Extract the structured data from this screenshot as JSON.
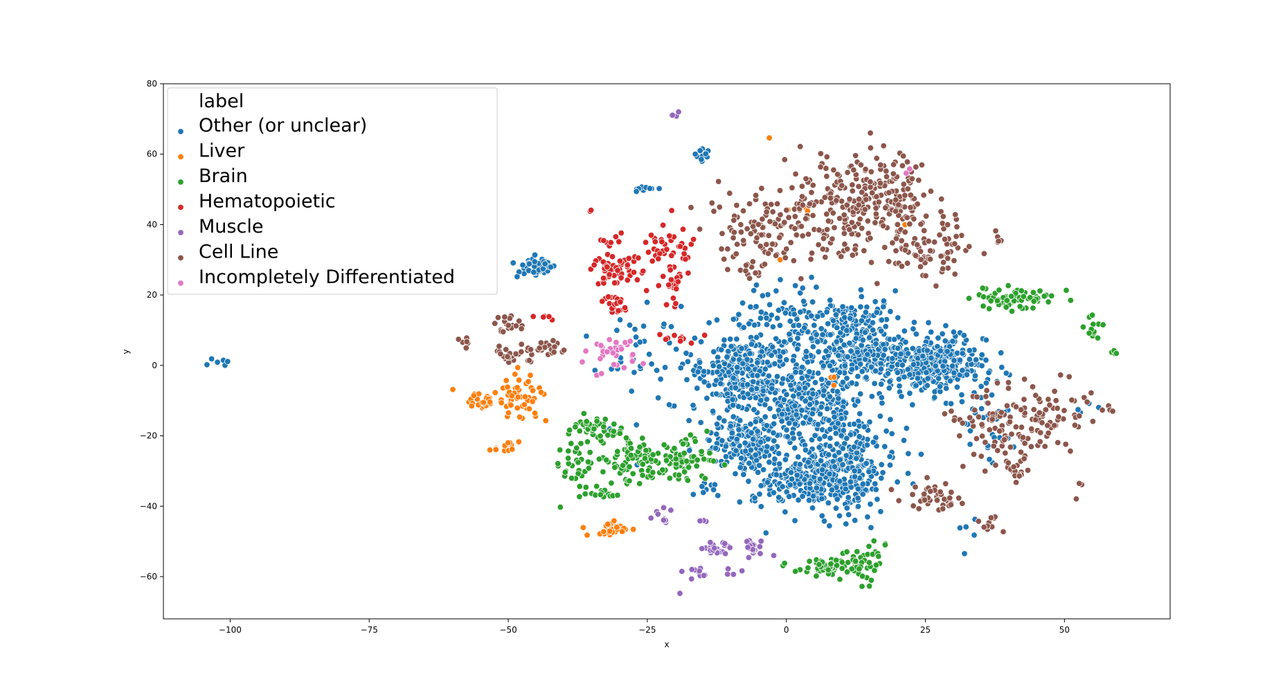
{
  "chart_data": {
    "type": "scatter",
    "title": "",
    "xlabel": "x",
    "ylabel": "y",
    "xlim": [
      -112,
      69
    ],
    "ylim": [
      -72,
      80
    ],
    "xticks": [
      -100,
      -75,
      -50,
      -25,
      0,
      25,
      50
    ],
    "yticks": [
      -60,
      -40,
      -20,
      0,
      20,
      40,
      60,
      80
    ],
    "xtick_labels": [
      "−100",
      "−75",
      "−50",
      "−25",
      "0",
      "25",
      "50"
    ],
    "ytick_labels": [
      "−60",
      "−40",
      "−20",
      "0",
      "20",
      "40",
      "60",
      "80"
    ],
    "grid": false,
    "legend": {
      "title": "label",
      "placement": "top-left"
    },
    "series": [
      {
        "name": "Other (or unclear)",
        "color": "#1f77b4",
        "clusters": [
          {
            "cx": -8,
            "cy": -2,
            "sx": 3.5,
            "sy": 5,
            "n": 260
          },
          {
            "cx": 4,
            "cy": -10,
            "sx": 5,
            "sy": 6,
            "n": 300
          },
          {
            "cx": 14,
            "cy": 6,
            "sx": 4,
            "sy": 6,
            "n": 260
          },
          {
            "cx": 27,
            "cy": 0,
            "sx": 4.5,
            "sy": 4,
            "n": 320
          },
          {
            "cx": 4,
            "cy": -32,
            "sx": 5,
            "sy": 4,
            "n": 260
          },
          {
            "cx": 12,
            "cy": -28,
            "sx": 4,
            "sy": 7,
            "n": 200
          },
          {
            "cx": -8,
            "cy": -22,
            "sx": 3.5,
            "sy": 4,
            "n": 150
          },
          {
            "cx": 2,
            "cy": 10,
            "sx": 6,
            "sy": 7,
            "n": 140
          },
          {
            "cx": -45,
            "cy": 28,
            "sx": 1.8,
            "sy": 1.6,
            "n": 45
          },
          {
            "cx": -15,
            "cy": 60,
            "sx": 1,
            "sy": 1,
            "n": 12
          },
          {
            "cx": -26,
            "cy": 50,
            "sx": 1.2,
            "sy": 0.5,
            "n": 9
          },
          {
            "cx": -102,
            "cy": 1,
            "sx": 1.3,
            "sy": 0.7,
            "n": 6
          },
          {
            "cx": -17,
            "cy": -5,
            "sx": 7,
            "sy": 10,
            "n": 60
          },
          {
            "cx": -28,
            "cy": 5,
            "sx": 3,
            "sy": 5,
            "n": 18
          },
          {
            "cx": 36,
            "cy": -15,
            "sx": 3,
            "sy": 8,
            "n": 30
          },
          {
            "cx": 55,
            "cy": -12,
            "sx": 1.5,
            "sy": 1,
            "n": 4
          },
          {
            "cx": -14,
            "cy": -35,
            "sx": 1.2,
            "sy": 1,
            "n": 10
          },
          {
            "cx": 33,
            "cy": -47,
            "sx": 2,
            "sy": 2,
            "n": 5
          }
        ]
      },
      {
        "name": "Liver",
        "color": "#ff7f0e",
        "clusters": [
          {
            "cx": -48,
            "cy": -9,
            "sx": 2.2,
            "sy": 3,
            "n": 55
          },
          {
            "cx": -55,
            "cy": -10,
            "sx": 1.6,
            "sy": 1,
            "n": 25
          },
          {
            "cx": -32,
            "cy": -47,
            "sx": 2,
            "sy": 1,
            "n": 35
          },
          {
            "cx": -50,
            "cy": -23,
            "sx": 1.3,
            "sy": 0.8,
            "n": 12
          },
          {
            "cx": -60,
            "cy": -7,
            "sx": 0.3,
            "sy": 0.3,
            "n": 1
          },
          {
            "cx": -3,
            "cy": 65,
            "sx": 0.3,
            "sy": 0.3,
            "n": 1
          },
          {
            "cx": 4,
            "cy": 44,
            "sx": 1.5,
            "sy": 1.5,
            "n": 4
          },
          {
            "cx": 9,
            "cy": -5,
            "sx": 2,
            "sy": 2,
            "n": 3
          },
          {
            "cx": 22,
            "cy": 40,
            "sx": 0.3,
            "sy": 0.3,
            "n": 1
          },
          {
            "cx": -1,
            "cy": 30,
            "sx": 0.3,
            "sy": 0.3,
            "n": 1
          }
        ]
      },
      {
        "name": "Brain",
        "color": "#2ca02c",
        "clusters": [
          {
            "cx": -34,
            "cy": -18,
            "sx": 2.5,
            "sy": 2,
            "n": 40
          },
          {
            "cx": -26,
            "cy": -27,
            "sx": 3,
            "sy": 3,
            "n": 90
          },
          {
            "cx": -19,
            "cy": -27,
            "sx": 2.5,
            "sy": 3,
            "n": 60
          },
          {
            "cx": -38,
            "cy": -28,
            "sx": 2,
            "sy": 5,
            "n": 40
          },
          {
            "cx": -33,
            "cy": -36,
            "sx": 1.5,
            "sy": 1,
            "n": 12
          },
          {
            "cx": 42,
            "cy": 19,
            "sx": 3.5,
            "sy": 1.5,
            "n": 70
          },
          {
            "cx": 7,
            "cy": -57,
            "sx": 2.3,
            "sy": 1.3,
            "n": 50
          },
          {
            "cx": 14,
            "cy": -56,
            "sx": 2,
            "sy": 3,
            "n": 45
          },
          {
            "cx": 55,
            "cy": 10,
            "sx": 0.8,
            "sy": 2,
            "n": 12
          },
          {
            "cx": 59,
            "cy": 4,
            "sx": 0.5,
            "sy": 0.8,
            "n": 4
          }
        ]
      },
      {
        "name": "Hematopoietic",
        "color": "#d62728",
        "clusters": [
          {
            "cx": -31,
            "cy": 28,
            "sx": 2,
            "sy": 2.5,
            "n": 60
          },
          {
            "cx": -31,
            "cy": 17,
            "sx": 1,
            "sy": 2,
            "n": 20
          },
          {
            "cx": -21,
            "cy": 33,
            "sx": 2.5,
            "sy": 4,
            "n": 40
          },
          {
            "cx": -21,
            "cy": 22,
            "sx": 1.5,
            "sy": 3,
            "n": 20
          },
          {
            "cx": -32,
            "cy": 36,
            "sx": 1,
            "sy": 0.8,
            "n": 8
          },
          {
            "cx": -35,
            "cy": 44,
            "sx": 0.3,
            "sy": 0.3,
            "n": 2
          },
          {
            "cx": -19,
            "cy": 8,
            "sx": 2,
            "sy": 1,
            "n": 10
          },
          {
            "cx": -44,
            "cy": 14,
            "sx": 1.5,
            "sy": 0.5,
            "n": 5
          }
        ]
      },
      {
        "name": "Muscle",
        "color": "#9467bd",
        "clusters": [
          {
            "cx": -20,
            "cy": 72,
            "sx": 0.4,
            "sy": 1.5,
            "n": 4
          },
          {
            "cx": -22,
            "cy": -43,
            "sx": 1,
            "sy": 1,
            "n": 10
          },
          {
            "cx": -12,
            "cy": -52,
            "sx": 1.5,
            "sy": 1,
            "n": 22
          },
          {
            "cx": -6,
            "cy": -52,
            "sx": 1,
            "sy": 1.5,
            "n": 20
          },
          {
            "cx": -16,
            "cy": -59,
            "sx": 1,
            "sy": 1,
            "n": 10
          },
          {
            "cx": -15,
            "cy": -44,
            "sx": 0.8,
            "sy": 0.4,
            "n": 4
          },
          {
            "cx": -19,
            "cy": -65,
            "sx": 0.3,
            "sy": 0.3,
            "n": 1
          },
          {
            "cx": -10,
            "cy": -58,
            "sx": 1,
            "sy": 1,
            "n": 4
          }
        ]
      },
      {
        "name": "Cell Line",
        "color": "#8c564b",
        "clusters": [
          {
            "cx": 5,
            "cy": 42,
            "sx": 8,
            "sy": 8,
            "n": 180
          },
          {
            "cx": 16,
            "cy": 48,
            "sx": 5,
            "sy": 6,
            "n": 160
          },
          {
            "cx": 27,
            "cy": 33,
            "sx": 4,
            "sy": 4,
            "n": 70
          },
          {
            "cx": -6,
            "cy": 38,
            "sx": 4,
            "sy": 3,
            "n": 40
          },
          {
            "cx": -6,
            "cy": 27,
            "sx": 1.2,
            "sy": 1.5,
            "n": 15
          },
          {
            "cx": -50,
            "cy": 12,
            "sx": 2,
            "sy": 1.5,
            "n": 20
          },
          {
            "cx": -49,
            "cy": 3,
            "sx": 2,
            "sy": 1,
            "n": 25
          },
          {
            "cx": -42,
            "cy": 5,
            "sx": 2,
            "sy": 1.2,
            "n": 20
          },
          {
            "cx": -58,
            "cy": 6,
            "sx": 0.5,
            "sy": 1,
            "n": 6
          },
          {
            "cx": 37,
            "cy": -18,
            "sx": 4,
            "sy": 5,
            "n": 60
          },
          {
            "cx": 46,
            "cy": -14,
            "sx": 4,
            "sy": 5,
            "n": 80
          },
          {
            "cx": 26,
            "cy": -37,
            "sx": 2.5,
            "sy": 2,
            "n": 40
          },
          {
            "cx": 41,
            "cy": -30,
            "sx": 1.5,
            "sy": 2,
            "n": 15
          },
          {
            "cx": 37,
            "cy": -45,
            "sx": 1.5,
            "sy": 1.5,
            "n": 10
          },
          {
            "cx": 38,
            "cy": 36,
            "sx": 0.5,
            "sy": 0.8,
            "n": 5
          },
          {
            "cx": 53,
            "cy": -35,
            "sx": 0.5,
            "sy": 1.5,
            "n": 3
          },
          {
            "cx": 58,
            "cy": -12,
            "sx": 1,
            "sy": 0.5,
            "n": 4
          }
        ]
      },
      {
        "name": "Incompletely Differentiated",
        "color": "#e377c2",
        "clusters": [
          {
            "cx": -31,
            "cy": 4,
            "sx": 2.5,
            "sy": 2.5,
            "n": 35
          },
          {
            "cx": 22,
            "cy": 55,
            "sx": 0.4,
            "sy": 0.4,
            "n": 2
          }
        ]
      }
    ]
  }
}
